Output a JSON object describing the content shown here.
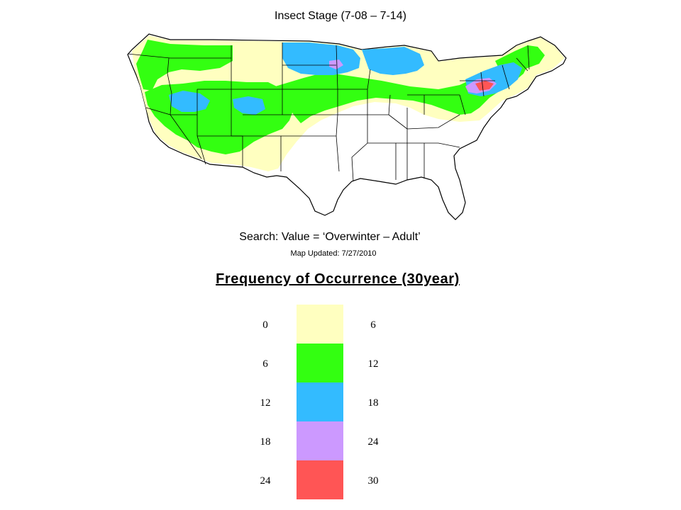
{
  "map": {
    "title": "Insect Stage (7-08 – 7-14)",
    "search_label": "Search: Value = ‘Overwinter – Adult’",
    "updated_label": "Map Updated: 7/27/2010",
    "region_colors": {
      "background": "#ffffff",
      "land": "#ffffff",
      "borders": "#000000",
      "band_0_6": "#ffffc0",
      "band_6_12": "#33ff11",
      "band_12_18": "#33bbff",
      "band_18_24": "#cc99ff",
      "band_24_30": "#ff5555"
    }
  },
  "legend": {
    "title": "Frequency of Occurrence (30year)",
    "bands": [
      {
        "low": "0",
        "high": "6",
        "color": "#ffffc0"
      },
      {
        "low": "6",
        "high": "12",
        "color": "#33ff11"
      },
      {
        "low": "12",
        "high": "18",
        "color": "#33bbff"
      },
      {
        "low": "18",
        "high": "24",
        "color": "#cc99ff"
      },
      {
        "low": "24",
        "high": "30",
        "color": "#ff5555"
      }
    ]
  }
}
